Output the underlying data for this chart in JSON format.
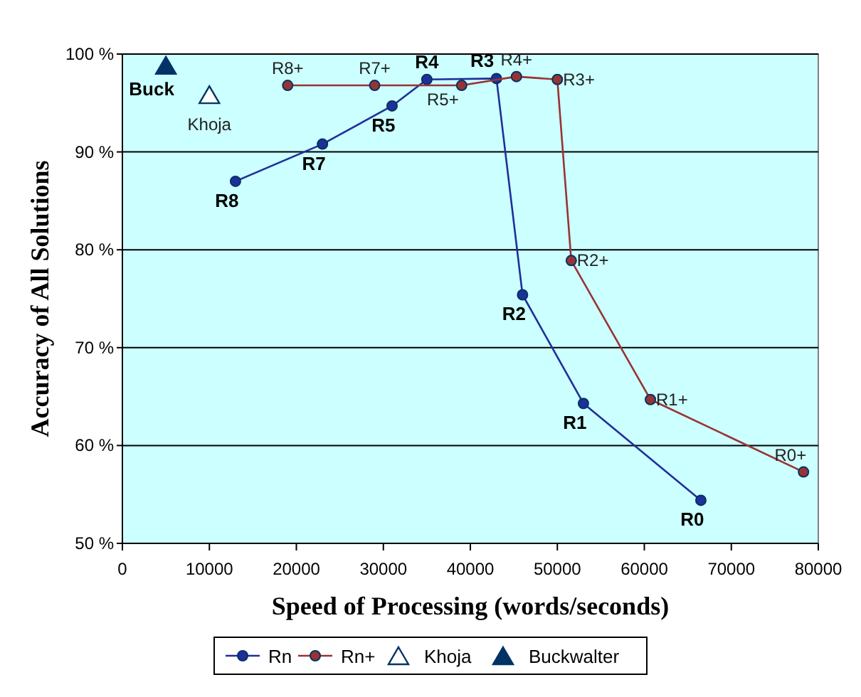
{
  "chart_data": {
    "type": "line",
    "xlabel": "Speed of Processing (words/seconds)",
    "ylabel": "Accuracy of All Solutions",
    "xlim": [
      0,
      80000
    ],
    "xticks": [
      0,
      10000,
      20000,
      30000,
      40000,
      50000,
      60000,
      70000,
      80000
    ],
    "ylim": [
      50,
      100
    ],
    "yticks": [
      {
        "value": 50,
        "label": "50 %"
      },
      {
        "value": 60,
        "label": "60 %"
      },
      {
        "value": 70,
        "label": "70 %"
      },
      {
        "value": 80,
        "label": "80 %"
      },
      {
        "value": 90,
        "label": "90 %"
      },
      {
        "value": 100,
        "label": "100 %"
      }
    ],
    "grid": "y",
    "legend": "bottom",
    "series": [
      {
        "name": "Rn",
        "marker": "circle",
        "color": "#1f2f99",
        "x": [
          13000,
          23000,
          31000,
          35000,
          43000,
          46000,
          53000,
          66500
        ],
        "values": [
          87,
          90.8,
          94.7,
          97.4,
          97.5,
          75.4,
          64.3,
          54.4
        ]
      },
      {
        "name": "Rn+",
        "marker": "circle",
        "color": "#993333",
        "x": [
          19000,
          29000,
          39000,
          45300,
          50000,
          51600,
          60700,
          78300
        ],
        "values": [
          96.8,
          96.8,
          96.8,
          97.7,
          97.4,
          78.9,
          64.7,
          57.3
        ]
      },
      {
        "name": "Khoja",
        "type": "scatter",
        "marker": "triangle",
        "color": "#ffffff",
        "x": [
          10000
        ],
        "values": [
          95.7
        ]
      },
      {
        "name": "Buckwalter",
        "type": "scatter",
        "marker": "triangle",
        "color": "#003366",
        "x": [
          5000
        ],
        "values": [
          98.7
        ]
      }
    ],
    "annotations": [
      {
        "text": "R8",
        "x": 13000,
        "y": 87
      },
      {
        "text": "R7",
        "x": 23000,
        "y": 90.8
      },
      {
        "text": "R5",
        "x": 31000,
        "y": 94.7
      },
      {
        "text": "R4",
        "x": 35000,
        "y": 97.4
      },
      {
        "text": "R3",
        "x": 43000,
        "y": 97.5
      },
      {
        "text": "R2",
        "x": 46000,
        "y": 75.4
      },
      {
        "text": "R1",
        "x": 53000,
        "y": 64.3
      },
      {
        "text": "R0",
        "x": 66500,
        "y": 54.4
      },
      {
        "text": "R8+",
        "x": 19000,
        "y": 96.8
      },
      {
        "text": "R7+",
        "x": 29000,
        "y": 96.8
      },
      {
        "text": "R5+",
        "x": 39000,
        "y": 96.8
      },
      {
        "text": "R4+",
        "x": 45300,
        "y": 97.7
      },
      {
        "text": "R3+",
        "x": 50000,
        "y": 97.4
      },
      {
        "text": "R2+",
        "x": 51600,
        "y": 78.9
      },
      {
        "text": "R1+",
        "x": 60700,
        "y": 64.7
      },
      {
        "text": "R0+",
        "x": 78300,
        "y": 57.3
      },
      {
        "text": "Khoja",
        "x": 10000,
        "y": 95.7
      },
      {
        "text": "Buck",
        "x": 5000,
        "y": 98.7
      }
    ]
  }
}
